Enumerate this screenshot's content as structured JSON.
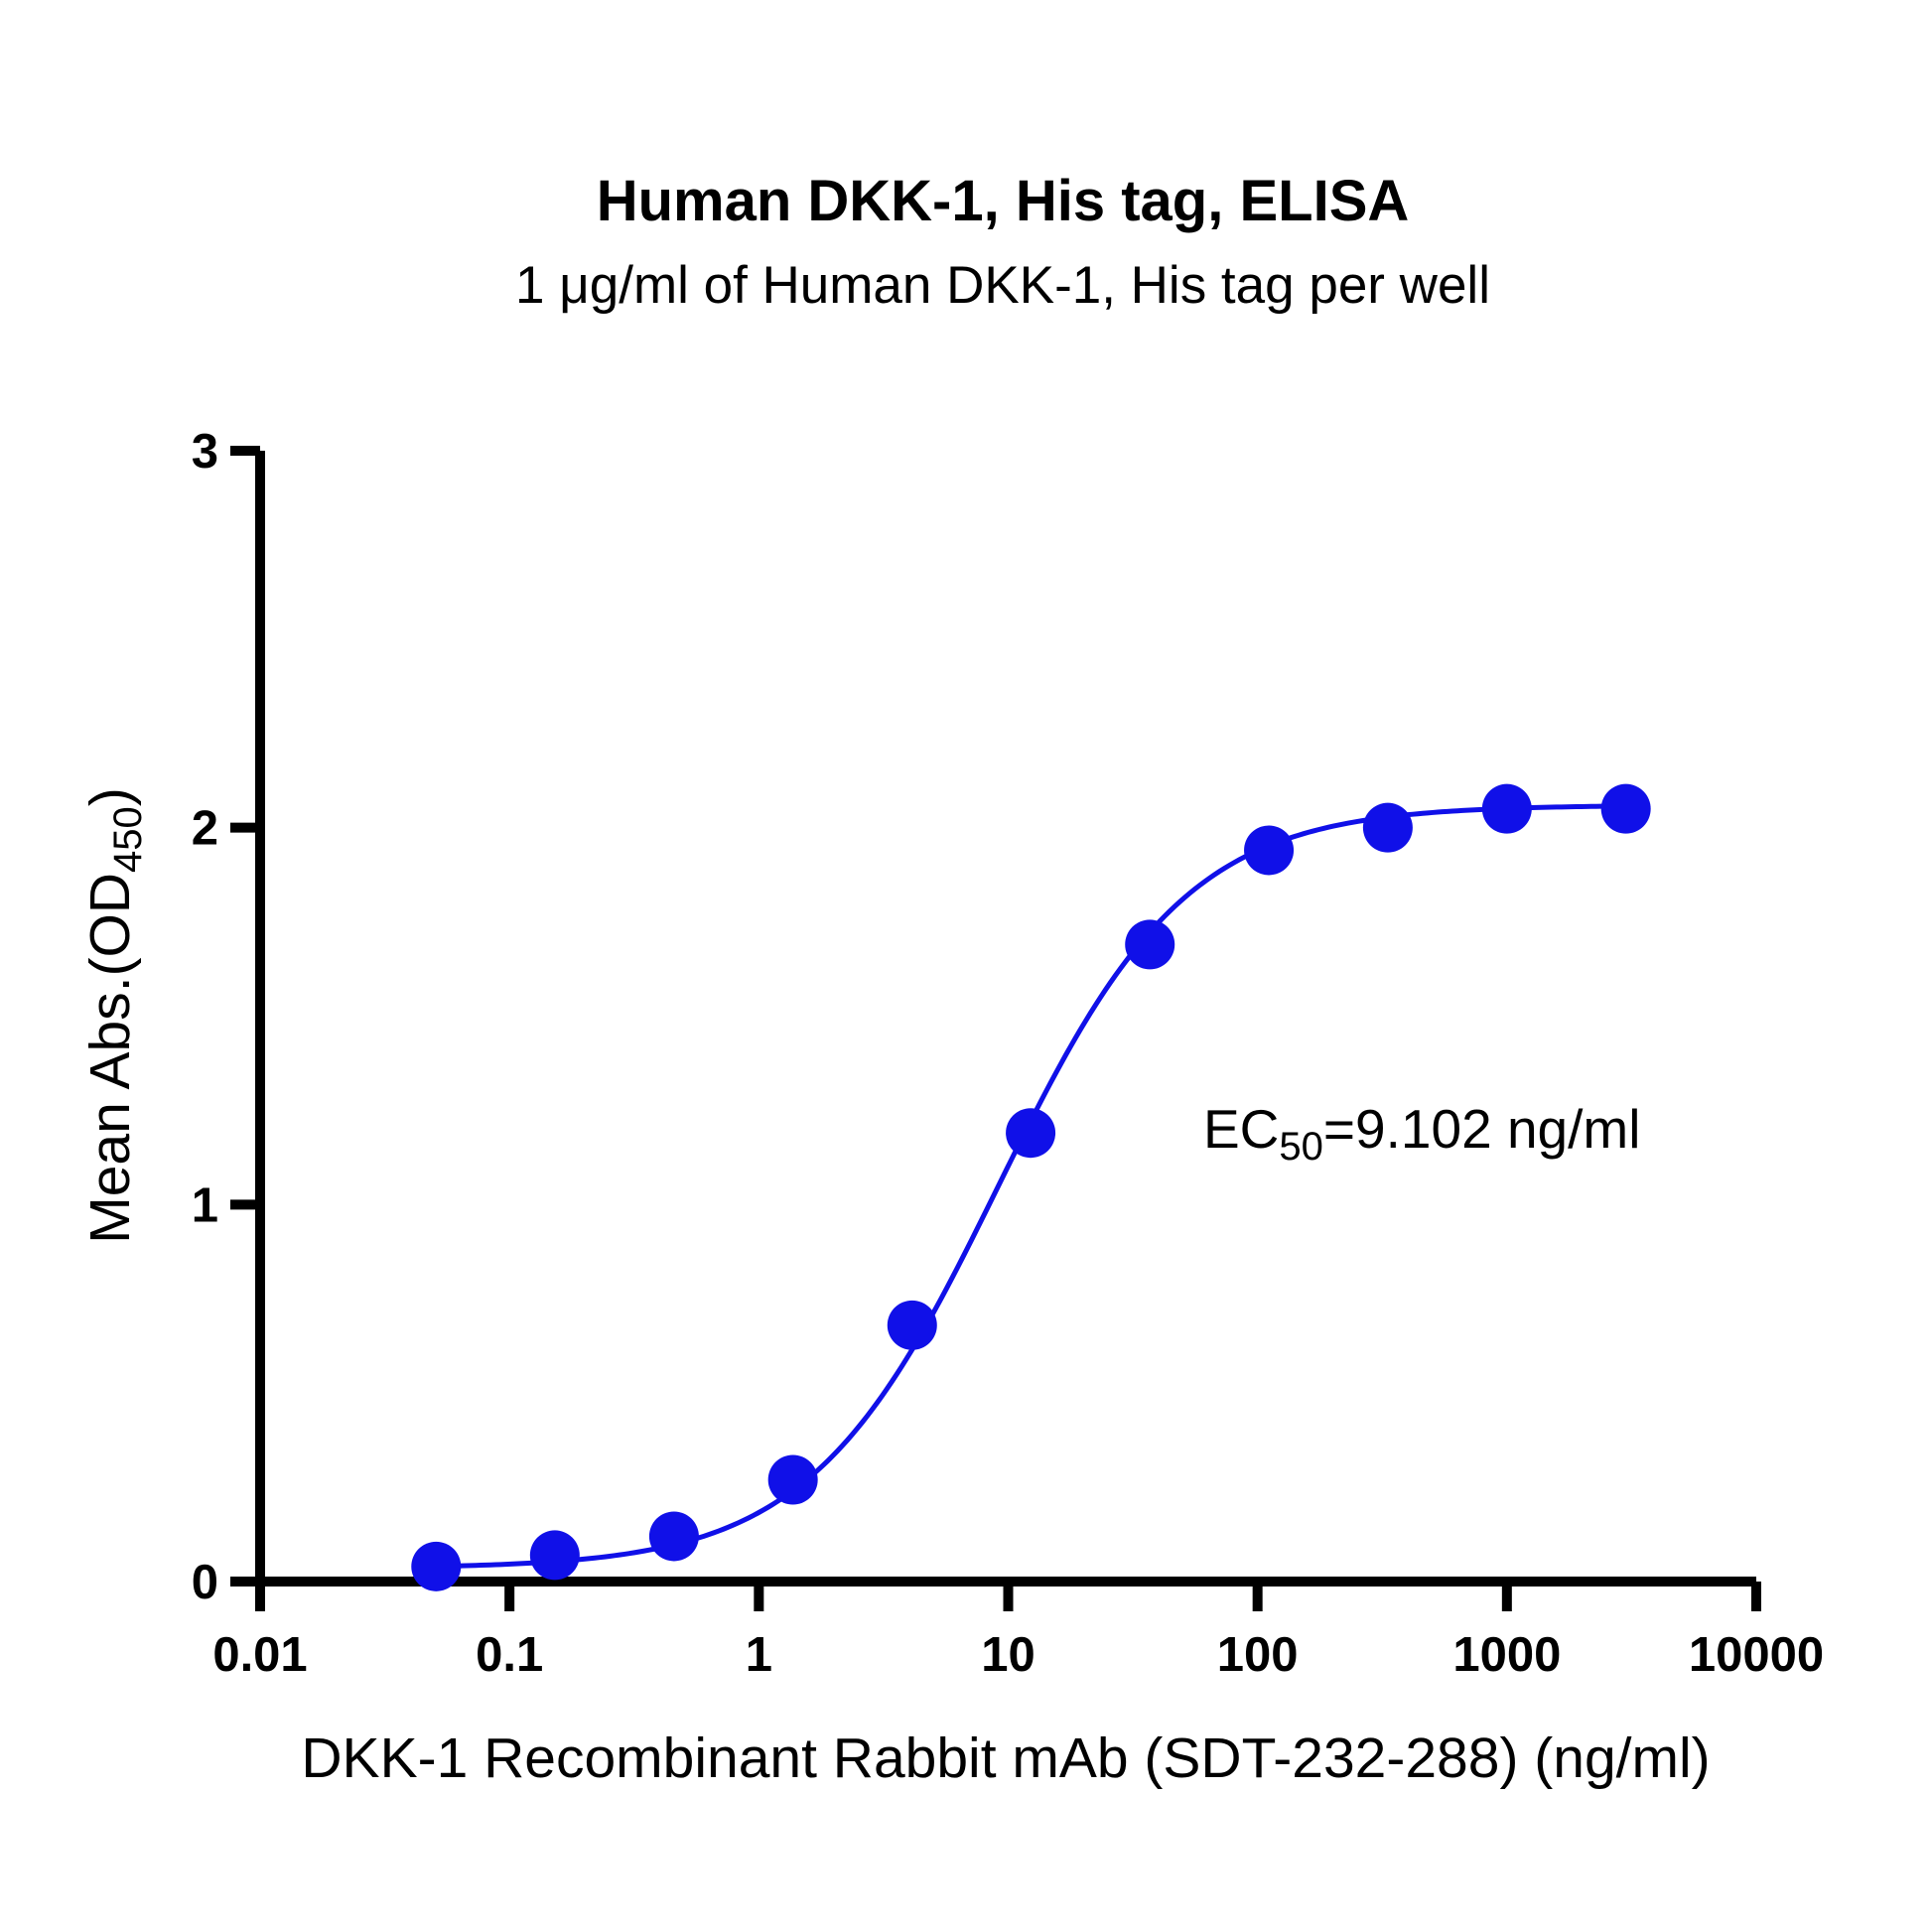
{
  "chart_data": {
    "type": "scatter",
    "title": "Human DKK-1, His tag, ELISA",
    "subtitle": "1 μg/ml of Human DKK-1, His tag per well",
    "xlabel": "DKK-1 Recombinant Rabbit mAb (SDT-232-288) (ng/ml)",
    "ylabel": {
      "prefix": "Mean Abs.(OD",
      "sub": "450",
      "suffix": ")"
    },
    "x_scale": "log",
    "xlim": [
      0.01,
      10000
    ],
    "ylim": [
      0,
      3
    ],
    "x_ticks": [
      0.01,
      0.1,
      1,
      10,
      100,
      1000,
      10000
    ],
    "x_tick_labels": [
      "0.01",
      "0.1",
      "1",
      "10",
      "100",
      "1000",
      "10000"
    ],
    "y_ticks": [
      0,
      1,
      2,
      3
    ],
    "y_tick_labels": [
      "0",
      "1",
      "2",
      "3"
    ],
    "grid": false,
    "color": "#1010e8",
    "series": [
      {
        "x": [
          0.0508,
          0.152,
          0.457,
          1.37,
          4.12,
          12.3,
          37.0,
          111,
          333,
          1000,
          3000
        ],
        "y": [
          0.04,
          0.07,
          0.12,
          0.27,
          0.68,
          1.19,
          1.69,
          1.94,
          2.0,
          2.05,
          2.05
        ]
      }
    ],
    "fit": {
      "bottom": 0.035,
      "top": 2.06,
      "ec50": 9.102,
      "hill": 1.15
    },
    "annotation": {
      "prefix": "EC",
      "sub": "50",
      "suffix": "=9.102 ng/ml"
    }
  }
}
